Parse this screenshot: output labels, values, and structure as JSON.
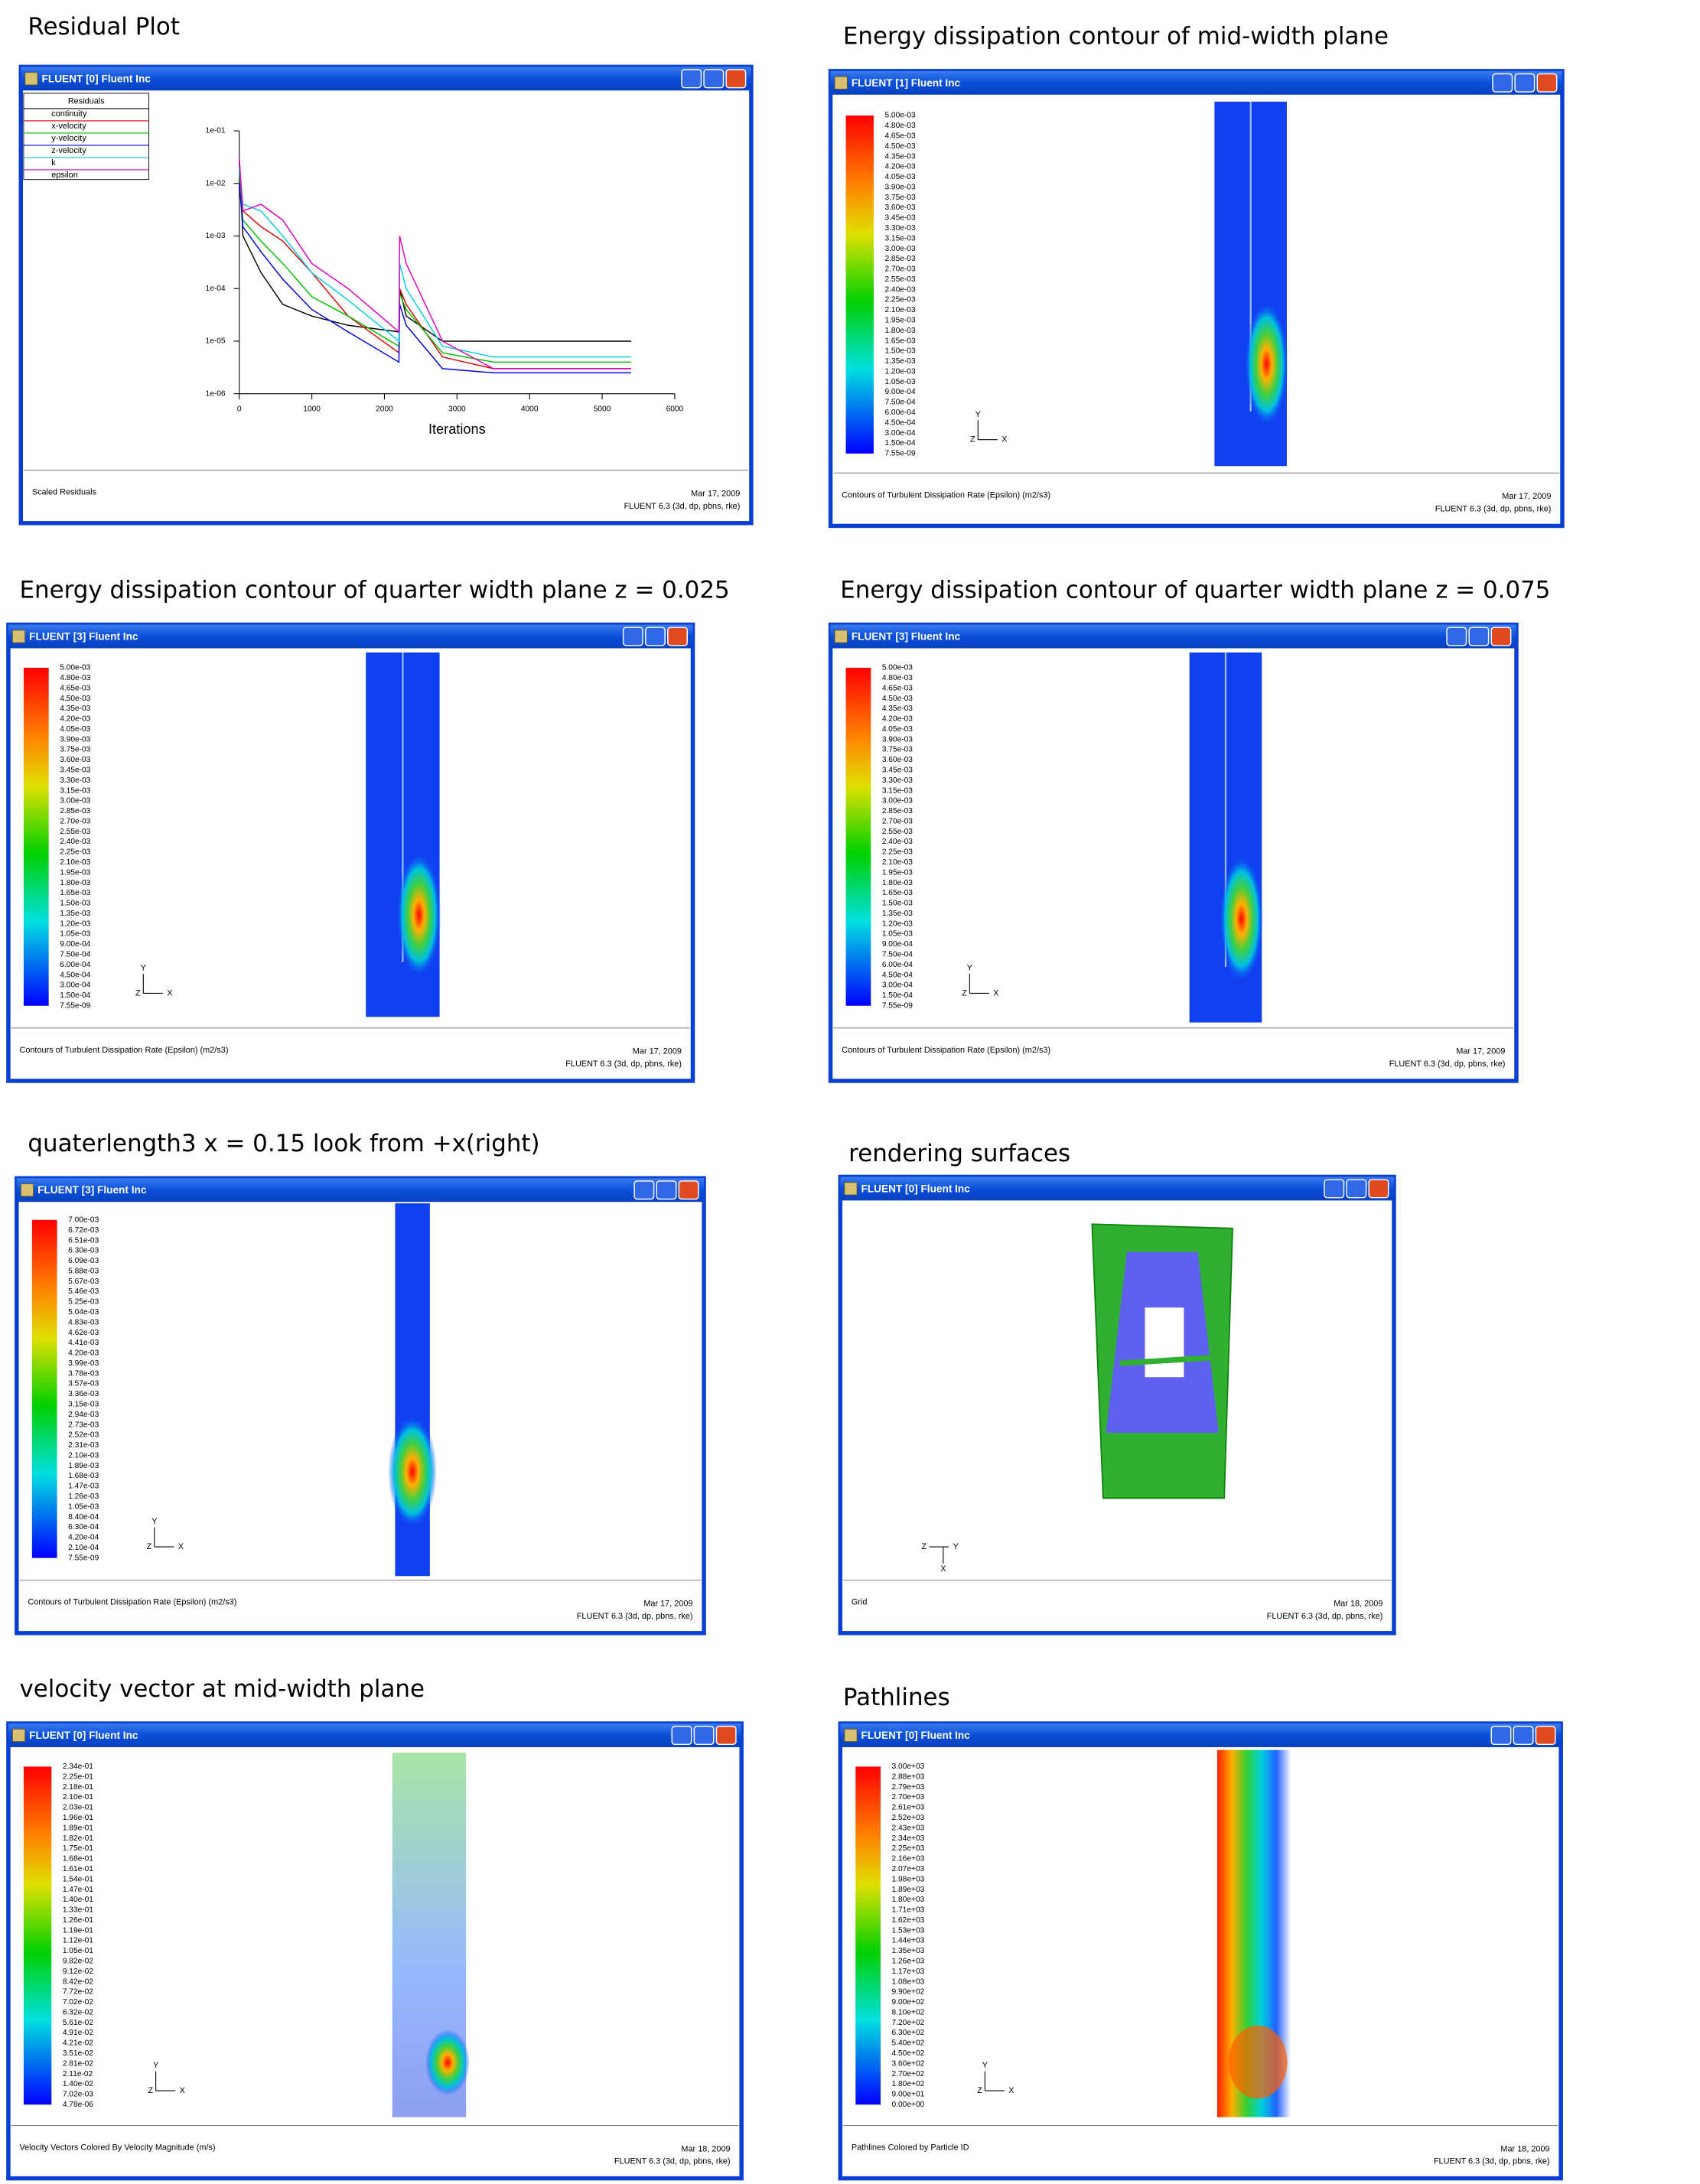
{
  "panels": [
    {
      "heading": "Residual Plot",
      "window_title": "FLUENT [0] Fluent Inc",
      "footer_left": "Scaled Residuals",
      "footer_date": "Mar 17, 2009",
      "footer_version": "FLUENT 6.3 (3d, dp, pbns, rke)",
      "chart": {
        "type": "line",
        "log_scale_y": true,
        "x_label": "Iterations",
        "legend_title": "Residuals",
        "xlim": [
          0,
          6000
        ],
        "xticks": [
          0,
          1000,
          2000,
          3000,
          4000,
          5000,
          6000
        ],
        "ylim": [
          1e-06,
          0.1
        ],
        "yticks": [
          {
            "value": 0.1,
            "label": "1e-01"
          },
          {
            "value": 0.01,
            "label": "1e-02"
          },
          {
            "value": 0.001,
            "label": "1e-03"
          },
          {
            "value": 0.0001,
            "label": "1e-04"
          },
          {
            "value": 1e-05,
            "label": "1e-05"
          },
          {
            "value": 1e-06,
            "label": "1e-06"
          }
        ],
        "x": [
          0,
          50,
          300,
          600,
          1000,
          1500,
          2200,
          2210,
          2300,
          2800,
          3500,
          5400
        ],
        "series": [
          {
            "name": "continuity",
            "color": "#000000",
            "values": [
              0.03,
              0.001,
              0.0002,
              5e-05,
              3e-05,
              2e-05,
              1.5e-05,
              0.0001,
              3e-05,
              1e-05,
              1e-05,
              1e-05
            ]
          },
          {
            "name": "x-velocity",
            "color": "#e00000",
            "values": [
              0.02,
              0.003,
              0.0015,
              0.0008,
              0.0002,
              3e-05,
              6e-06,
              0.0001,
              5e-05,
              5e-06,
              3e-06,
              3e-06
            ]
          },
          {
            "name": "y-velocity",
            "color": "#00c000",
            "values": [
              0.02,
              0.002,
              0.0008,
              0.0003,
              7e-05,
              3e-05,
              8e-06,
              8e-05,
              4e-05,
              6e-06,
              4e-06,
              4e-06
            ]
          },
          {
            "name": "z-velocity",
            "color": "#0000e0",
            "values": [
              0.01,
              0.0015,
              0.0005,
              0.00015,
              4e-05,
              1.5e-05,
              4e-06,
              5e-05,
              2e-05,
              3e-06,
              2.5e-06,
              2.5e-06
            ]
          },
          {
            "name": "k",
            "color": "#00d0e0",
            "values": [
              0.02,
              0.004,
              0.003,
              0.001,
              0.0002,
              6e-05,
              1e-05,
              0.0003,
              0.0001,
              8e-06,
              5e-06,
              5e-06
            ]
          },
          {
            "name": "epsilon",
            "color": "#e000c0",
            "values": [
              0.03,
              0.003,
              0.004,
              0.002,
              0.0003,
              0.0001,
              1.5e-05,
              0.001,
              0.0003,
              1e-05,
              3e-06,
              3e-06
            ]
          }
        ]
      }
    },
    {
      "heading": "Energy dissipation contour of mid-width plane",
      "window_title": "FLUENT [1] Fluent Inc",
      "footer_left": "Contours of Turbulent Dissipation Rate (Epsilon) (m2/s3)",
      "footer_date": "Mar 17, 2009",
      "footer_version": "FLUENT 6.3 (3d, dp, pbns, rke)",
      "triad": [
        "Y",
        "Z",
        "X"
      ],
      "colorbar_labels": [
        "5.00e-03",
        "4.80e-03",
        "4.65e-03",
        "4.50e-03",
        "4.35e-03",
        "4.20e-03",
        "4.05e-03",
        "3.90e-03",
        "3.75e-03",
        "3.60e-03",
        "3.45e-03",
        "3.30e-03",
        "3.15e-03",
        "3.00e-03",
        "2.85e-03",
        "2.70e-03",
        "2.55e-03",
        "2.40e-03",
        "2.25e-03",
        "2.10e-03",
        "1.95e-03",
        "1.80e-03",
        "1.65e-03",
        "1.50e-03",
        "1.35e-03",
        "1.20e-03",
        "1.05e-03",
        "9.00e-04",
        "7.50e-04",
        "6.00e-04",
        "4.50e-04",
        "3.00e-04",
        "1.50e-04",
        "7.55e-09"
      ]
    },
    {
      "heading": "Energy dissipation contour of quarter width plane z = 0.025",
      "window_title": "FLUENT [3] Fluent Inc",
      "footer_left": "Contours of Turbulent Dissipation Rate (Epsilon) (m2/s3)",
      "footer_date": "Mar 17, 2009",
      "footer_version": "FLUENT 6.3 (3d, dp, pbns, rke)",
      "triad": [
        "Y",
        "Z",
        "X"
      ],
      "colorbar_labels": [
        "5.00e-03",
        "4.80e-03",
        "4.65e-03",
        "4.50e-03",
        "4.35e-03",
        "4.20e-03",
        "4.05e-03",
        "3.90e-03",
        "3.75e-03",
        "3.60e-03",
        "3.45e-03",
        "3.30e-03",
        "3.15e-03",
        "3.00e-03",
        "2.85e-03",
        "2.70e-03",
        "2.55e-03",
        "2.40e-03",
        "2.25e-03",
        "2.10e-03",
        "1.95e-03",
        "1.80e-03",
        "1.65e-03",
        "1.50e-03",
        "1.35e-03",
        "1.20e-03",
        "1.05e-03",
        "9.00e-04",
        "7.50e-04",
        "6.00e-04",
        "4.50e-04",
        "3.00e-04",
        "1.50e-04",
        "7.55e-09"
      ]
    },
    {
      "heading": "Energy dissipation contour of quarter width plane z = 0.075",
      "window_title": "FLUENT [3] Fluent Inc",
      "footer_left": "Contours of Turbulent Dissipation Rate (Epsilon) (m2/s3)",
      "footer_date": "Mar 17, 2009",
      "footer_version": "FLUENT 6.3 (3d, dp, pbns, rke)",
      "triad": [
        "Y",
        "Z",
        "X"
      ],
      "colorbar_labels": [
        "5.00e-03",
        "4.80e-03",
        "4.65e-03",
        "4.50e-03",
        "4.35e-03",
        "4.20e-03",
        "4.05e-03",
        "3.90e-03",
        "3.75e-03",
        "3.60e-03",
        "3.45e-03",
        "3.30e-03",
        "3.15e-03",
        "3.00e-03",
        "2.85e-03",
        "2.70e-03",
        "2.55e-03",
        "2.40e-03",
        "2.25e-03",
        "2.10e-03",
        "1.95e-03",
        "1.80e-03",
        "1.65e-03",
        "1.50e-03",
        "1.35e-03",
        "1.20e-03",
        "1.05e-03",
        "9.00e-04",
        "7.50e-04",
        "6.00e-04",
        "4.50e-04",
        "3.00e-04",
        "1.50e-04",
        "7.55e-09"
      ]
    },
    {
      "heading": "quaterlength3 x = 0.15 look from +x(right)",
      "window_title": "FLUENT [3] Fluent Inc",
      "footer_left": "Contours of Turbulent Dissipation Rate (Epsilon) (m2/s3)",
      "footer_date": "Mar 17, 2009",
      "footer_version": "FLUENT 6.3 (3d, dp, pbns, rke)",
      "triad": [
        "Y",
        "Z",
        "X"
      ],
      "colorbar_labels": [
        "7.00e-03",
        "6.72e-03",
        "6.51e-03",
        "6.30e-03",
        "6.09e-03",
        "5.88e-03",
        "5.67e-03",
        "5.46e-03",
        "5.25e-03",
        "5.04e-03",
        "4.83e-03",
        "4.62e-03",
        "4.41e-03",
        "4.20e-03",
        "3.99e-03",
        "3.78e-03",
        "3.57e-03",
        "3.36e-03",
        "3.15e-03",
        "2.94e-03",
        "2.73e-03",
        "2.52e-03",
        "2.31e-03",
        "2.10e-03",
        "1.89e-03",
        "1.68e-03",
        "1.47e-03",
        "1.26e-03",
        "1.05e-03",
        "8.40e-04",
        "6.30e-04",
        "4.20e-04",
        "2.10e-04",
        "7.55e-09"
      ]
    },
    {
      "heading": "rendering surfaces",
      "window_title": "FLUENT [0] Fluent Inc",
      "footer_left": "Grid",
      "footer_date": "Mar 18, 2009",
      "footer_version": "FLUENT 6.3 (3d, dp, pbns, rke)",
      "triad": [
        "Y",
        "Z",
        "X"
      ]
    },
    {
      "heading": "velocity vector at mid-width plane",
      "window_title": "FLUENT [0] Fluent Inc",
      "footer_left": "Velocity Vectors Colored By Velocity Magnitude (m/s)",
      "footer_date": "Mar 18, 2009",
      "footer_version": "FLUENT 6.3 (3d, dp, pbns, rke)",
      "triad": [
        "Y",
        "Z",
        "X"
      ],
      "colorbar_labels": [
        "2.34e-01",
        "2.25e-01",
        "2.18e-01",
        "2.10e-01",
        "2.03e-01",
        "1.96e-01",
        "1.89e-01",
        "1.82e-01",
        "1.75e-01",
        "1.68e-01",
        "1.61e-01",
        "1.54e-01",
        "1.47e-01",
        "1.40e-01",
        "1.33e-01",
        "1.26e-01",
        "1.19e-01",
        "1.12e-01",
        "1.05e-01",
        "9.82e-02",
        "9.12e-02",
        "8.42e-02",
        "7.72e-02",
        "7.02e-02",
        "6.32e-02",
        "5.61e-02",
        "4.91e-02",
        "4.21e-02",
        "3.51e-02",
        "2.81e-02",
        "2.11e-02",
        "1.40e-02",
        "7.02e-03",
        "4.78e-06"
      ]
    },
    {
      "heading": "Pathlines",
      "window_title": "FLUENT [0] Fluent Inc",
      "footer_left": "Pathlines Colored by Particle ID",
      "footer_date": "Mar 18, 2009",
      "footer_version": "FLUENT 6.3 (3d, dp, pbns, rke)",
      "triad": [
        "Y",
        "Z",
        "X"
      ],
      "colorbar_labels": [
        "3.00e+03",
        "2.88e+03",
        "2.79e+03",
        "2.70e+03",
        "2.61e+03",
        "2.52e+03",
        "2.43e+03",
        "2.34e+03",
        "2.25e+03",
        "2.16e+03",
        "2.07e+03",
        "1.98e+03",
        "1.89e+03",
        "1.80e+03",
        "1.71e+03",
        "1.62e+03",
        "1.53e+03",
        "1.44e+03",
        "1.35e+03",
        "1.26e+03",
        "1.17e+03",
        "1.08e+03",
        "9.90e+02",
        "9.00e+02",
        "8.10e+02",
        "7.20e+02",
        "6.30e+02",
        "5.40e+02",
        "4.50e+02",
        "3.60e+02",
        "2.70e+02",
        "1.80e+02",
        "9.00e+01",
        "0.00e+00"
      ]
    }
  ]
}
